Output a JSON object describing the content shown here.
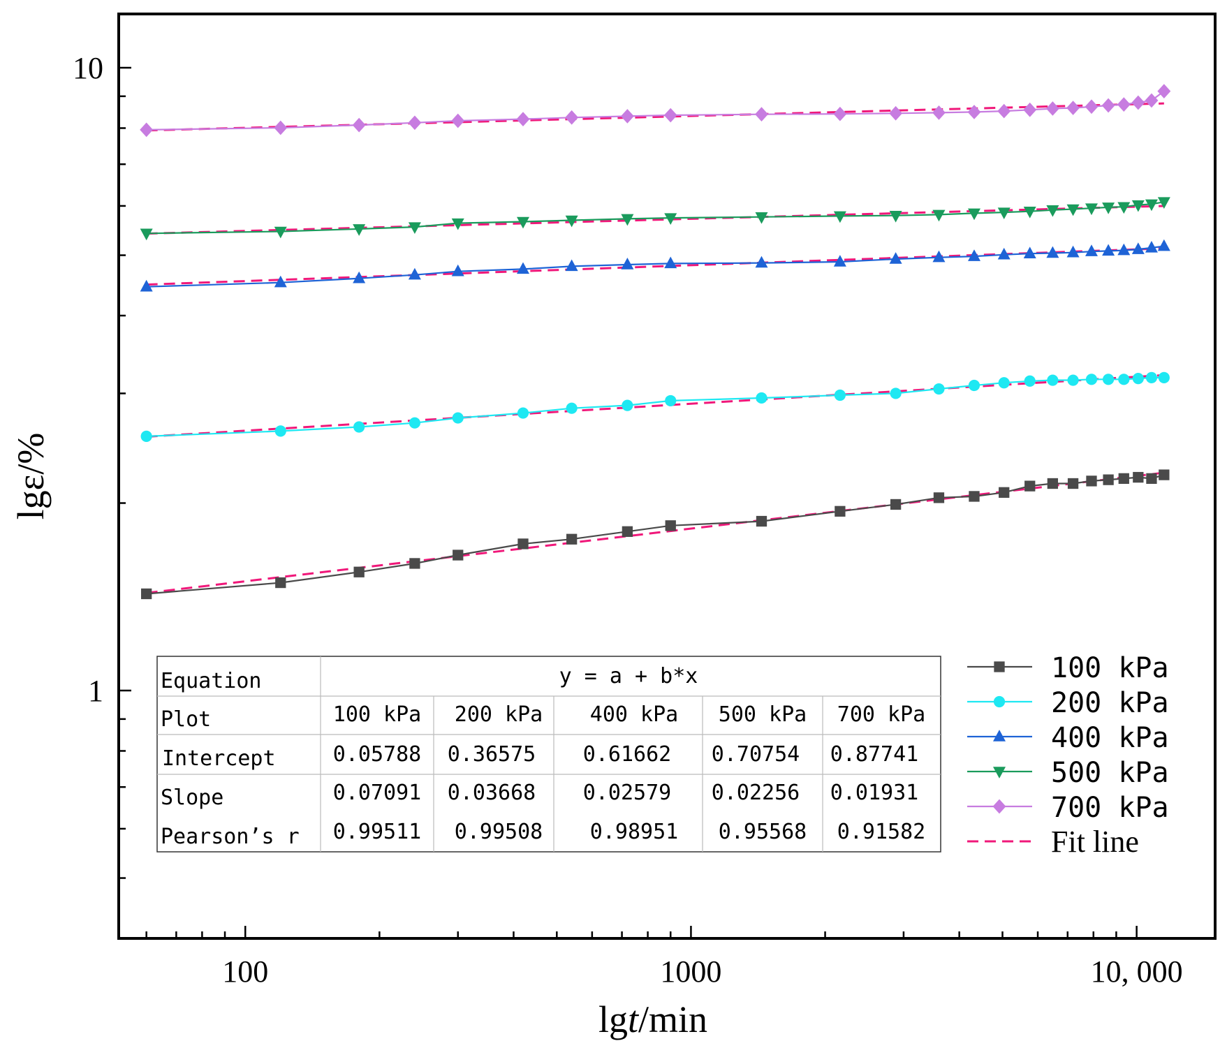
{
  "chart_data": {
    "type": "line",
    "x_scale": "log",
    "y_scale": "log",
    "xlabel_main": "lg",
    "xlabel_italic": "t",
    "xlabel_tail": "/min",
    "ylabel": "lgε/%",
    "xlim": [
      52,
      15000
    ],
    "ylim": [
      0.4,
      12.2
    ],
    "x_ticks": [
      {
        "value": 100,
        "label": "100"
      },
      {
        "value": 1000,
        "label": "1000"
      },
      {
        "value": 10000,
        "label": "10, 000"
      }
    ],
    "y_ticks": [
      {
        "value": 1,
        "label": "1"
      },
      {
        "value": 10,
        "label": "10"
      }
    ],
    "x": [
      60,
      120,
      180,
      240,
      300,
      420,
      540,
      720,
      900,
      1440,
      2160,
      2880,
      3600,
      4320,
      5040,
      5760,
      6480,
      7200,
      7920,
      8640,
      9360,
      10080,
      10800,
      11520
    ],
    "series": [
      {
        "name": "100 kPa",
        "color": "#4a4a4a",
        "marker": "square",
        "values": [
          1.43,
          1.49,
          1.55,
          1.6,
          1.65,
          1.72,
          1.75,
          1.8,
          1.84,
          1.87,
          1.94,
          1.99,
          2.04,
          2.05,
          2.08,
          2.13,
          2.15,
          2.15,
          2.17,
          2.18,
          2.19,
          2.2,
          2.19,
          2.22
        ],
        "fit": {
          "intercept": 0.05788,
          "slope": 0.07091
        }
      },
      {
        "name": "200 kPa",
        "color": "#1ee8f2",
        "marker": "circle",
        "values": [
          2.56,
          2.61,
          2.65,
          2.69,
          2.74,
          2.79,
          2.84,
          2.87,
          2.92,
          2.95,
          2.98,
          3.0,
          3.05,
          3.09,
          3.12,
          3.14,
          3.15,
          3.15,
          3.16,
          3.16,
          3.16,
          3.17,
          3.18,
          3.18
        ],
        "fit": {
          "intercept": 0.36575,
          "slope": 0.03668
        }
      },
      {
        "name": "400 kPa",
        "color": "#1e63d6",
        "marker": "triangle-up",
        "values": [
          4.45,
          4.52,
          4.59,
          4.65,
          4.71,
          4.75,
          4.8,
          4.83,
          4.85,
          4.86,
          4.88,
          4.93,
          4.96,
          4.98,
          5.01,
          5.03,
          5.04,
          5.05,
          5.07,
          5.08,
          5.09,
          5.11,
          5.14,
          5.17
        ],
        "fit": {
          "intercept": 0.61662,
          "slope": 0.02579
        }
      },
      {
        "name": "500 kPa",
        "color": "#1a9b5c",
        "marker": "triangle-down",
        "values": [
          5.42,
          5.46,
          5.51,
          5.55,
          5.63,
          5.66,
          5.69,
          5.72,
          5.74,
          5.76,
          5.78,
          5.79,
          5.81,
          5.84,
          5.86,
          5.88,
          5.91,
          5.93,
          5.95,
          5.97,
          5.98,
          6.02,
          6.04,
          6.09
        ],
        "fit": {
          "intercept": 0.70754,
          "slope": 0.02256
        }
      },
      {
        "name": "700 kPa",
        "color": "#c77ce0",
        "marker": "diamond",
        "values": [
          7.95,
          8.01,
          8.09,
          8.16,
          8.22,
          8.27,
          8.32,
          8.36,
          8.39,
          8.42,
          8.43,
          8.45,
          8.47,
          8.49,
          8.52,
          8.56,
          8.6,
          8.62,
          8.66,
          8.7,
          8.73,
          8.79,
          8.86,
          9.17
        ],
        "fit": {
          "intercept": 0.87741,
          "slope": 0.01931
        }
      }
    ],
    "fit_line": {
      "label": "Fit line",
      "color": "#f0187a",
      "color2": "#e8413e"
    }
  },
  "table": {
    "equation_label": "Equation",
    "equation_value": "y = a + b*x",
    "plot_label": "Plot",
    "plots": [
      "100 kPa",
      "200 kPa",
      "400 kPa",
      "500 kPa",
      "700 kPa"
    ],
    "rows": [
      {
        "label": "Intercept",
        "values": [
          "0.05788",
          "0.36575",
          "0.61662",
          "0.70754",
          "0.87741"
        ]
      },
      {
        "label": "Slope",
        "values": [
          "0.07091",
          "0.03668",
          "0.02579",
          "0.02256",
          "0.01931"
        ]
      },
      {
        "label": "Pearson’s r",
        "values": [
          "0.99511",
          "0.99508",
          "0.98951",
          "0.95568",
          "0.91582"
        ]
      }
    ]
  }
}
